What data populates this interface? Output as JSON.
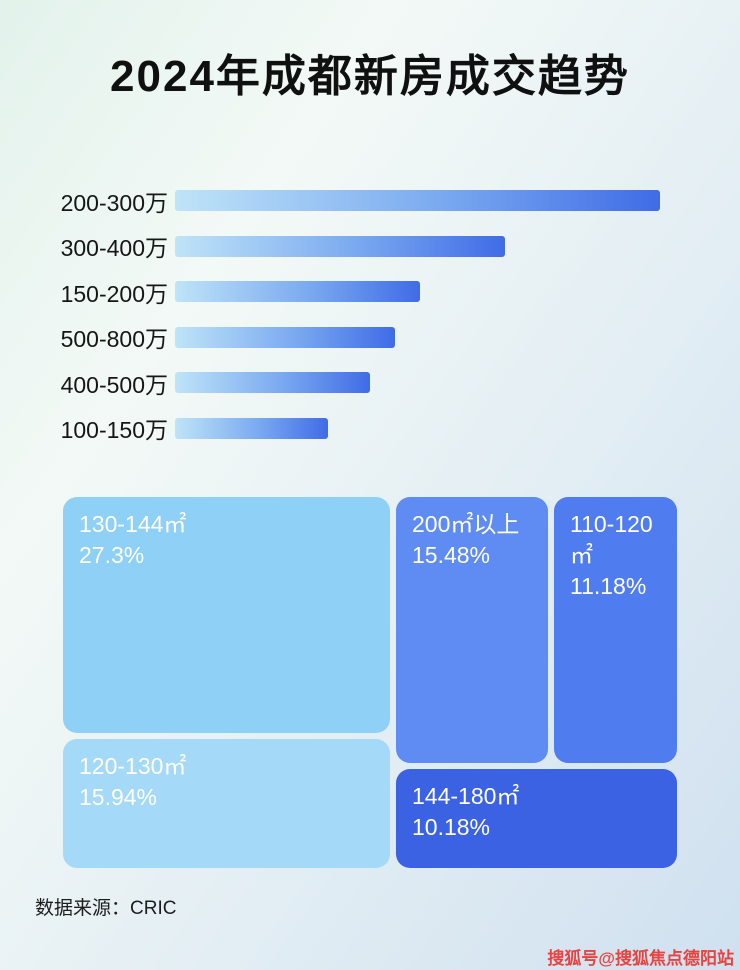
{
  "title": "2024年成都新房成交趋势",
  "footer": {
    "source_label": "数据来源：CRIC"
  },
  "watermark": {
    "text": "搜狐号@搜狐焦点德阳站",
    "color": "#e8433f"
  },
  "chart_data": [
    {
      "type": "bar",
      "orientation": "horizontal",
      "title": "2024年成都新房成交趋势",
      "categories": [
        "200-300万",
        "300-400万",
        "150-200万",
        "500-800万",
        "400-500万",
        "100-150万"
      ],
      "values": [
        100,
        68,
        50.5,
        45.4,
        40.2,
        31.5
      ],
      "value_unit": "percent_of_longest_bar",
      "axis_ticks_shown": false,
      "grid": false,
      "legend": "none",
      "bar_gradient": [
        "#bfe4f8",
        "#3f6ce6"
      ]
    },
    {
      "type": "treemap",
      "items": [
        {
          "label": "130-144㎡",
          "value": "27.3%",
          "color": "#8ed0f6"
        },
        {
          "label": "200㎡以上",
          "value": "15.48%",
          "color": "#5e8cf2"
        },
        {
          "label": "110-120㎡",
          "value": "11.18%",
          "color": "#4f7cee"
        },
        {
          "label": "120-130㎡",
          "value": "15.94%",
          "color": "#a4d9f8"
        },
        {
          "label": "144-180㎡",
          "value": "10.18%",
          "color": "#3c62e4"
        }
      ],
      "value_label_color": "#ffffff"
    }
  ]
}
